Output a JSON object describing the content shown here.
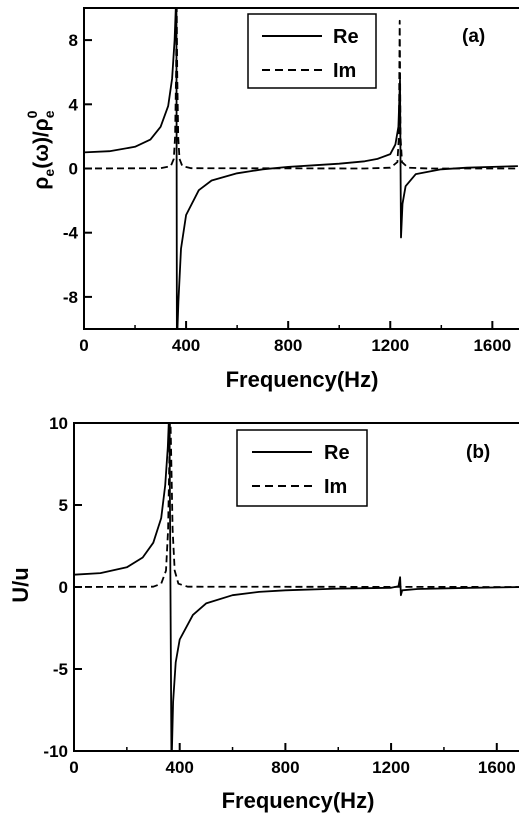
{
  "chart_data": [
    {
      "type": "line",
      "panel_label": "(a)",
      "xlabel": "Frequency(Hz)",
      "ylabel": {
        "rho": "ρ",
        "sub_e": "e",
        "omega": "(ω)",
        "slash": "/",
        "sup_0": "0"
      },
      "xlim": [
        0,
        1700
      ],
      "ylim": [
        -10,
        10
      ],
      "xticks": [
        0,
        400,
        800,
        1200,
        1600
      ],
      "yticks": [
        8,
        4,
        0,
        -4,
        -8
      ],
      "xtick_labels": [
        "0",
        "400",
        "800",
        "1200",
        "1600"
      ],
      "ytick_labels": [
        "8",
        "4",
        "0",
        "-4",
        "-8"
      ],
      "legend_position": "top-right",
      "series": [
        {
          "name": "Re",
          "style": "solid",
          "points": [
            [
              0,
              1.0
            ],
            [
              100,
              1.08
            ],
            [
              200,
              1.35
            ],
            [
              260,
              1.8
            ],
            [
              300,
              2.6
            ],
            [
              330,
              3.9
            ],
            [
              345,
              5.6
            ],
            [
              355,
              8.0
            ],
            [
              362,
              11
            ],
            [
              364,
              -11
            ],
            [
              370,
              -8.3
            ],
            [
              380,
              -5.0
            ],
            [
              400,
              -2.9
            ],
            [
              450,
              -1.35
            ],
            [
              500,
              -0.75
            ],
            [
              600,
              -0.3
            ],
            [
              700,
              -0.05
            ],
            [
              800,
              0.1
            ],
            [
              900,
              0.2
            ],
            [
              1000,
              0.3
            ],
            [
              1100,
              0.45
            ],
            [
              1150,
              0.6
            ],
            [
              1200,
              0.9
            ],
            [
              1220,
              1.5
            ],
            [
              1232,
              2.6
            ],
            [
              1238,
              5.5
            ],
            [
              1242,
              -4.3
            ],
            [
              1248,
              -2.2
            ],
            [
              1260,
              -1.1
            ],
            [
              1300,
              -0.35
            ],
            [
              1400,
              -0.05
            ],
            [
              1500,
              0.05
            ],
            [
              1600,
              0.1
            ],
            [
              1700,
              0.15
            ]
          ]
        },
        {
          "name": "Im",
          "style": "dashed",
          "points": [
            [
              0,
              0
            ],
            [
              300,
              0.02
            ],
            [
              340,
              0.15
            ],
            [
              352,
              0.6
            ],
            [
              357,
              2.0
            ],
            [
              361,
              6.0
            ],
            [
              363,
              11
            ],
            [
              365,
              6.0
            ],
            [
              369,
              2.0
            ],
            [
              374,
              0.6
            ],
            [
              385,
              0.15
            ],
            [
              420,
              0.02
            ],
            [
              1100,
              0
            ],
            [
              1200,
              0.05
            ],
            [
              1228,
              0.4
            ],
            [
              1234,
              2.0
            ],
            [
              1237,
              9.2
            ],
            [
              1240,
              2.0
            ],
            [
              1246,
              0.4
            ],
            [
              1270,
              0.05
            ],
            [
              1350,
              0
            ],
            [
              1700,
              0
            ]
          ]
        }
      ]
    },
    {
      "type": "line",
      "panel_label": "(b)",
      "xlabel": "Frequency(Hz)",
      "ylabel": "U/u",
      "xlim": [
        0,
        1700
      ],
      "ylim": [
        -10,
        10
      ],
      "xticks": [
        0,
        400,
        800,
        1200,
        1600
      ],
      "yticks": [
        10,
        5,
        0,
        -5,
        -10
      ],
      "xtick_labels": [
        "0",
        "400",
        "800",
        "1200",
        "1600"
      ],
      "ytick_labels": [
        "10",
        "5",
        "0",
        "-5",
        "-10"
      ],
      "legend_position": "top-right",
      "series": [
        {
          "name": "Re",
          "style": "solid",
          "points": [
            [
              0,
              0.75
            ],
            [
              100,
              0.85
            ],
            [
              200,
              1.2
            ],
            [
              260,
              1.8
            ],
            [
              300,
              2.7
            ],
            [
              330,
              4.2
            ],
            [
              345,
              6.2
            ],
            [
              355,
              8.5
            ],
            [
              361,
              11
            ],
            [
              369,
              -11
            ],
            [
              375,
              -7.0
            ],
            [
              385,
              -4.6
            ],
            [
              400,
              -3.2
            ],
            [
              450,
              -1.7
            ],
            [
              500,
              -1.0
            ],
            [
              600,
              -0.5
            ],
            [
              700,
              -0.3
            ],
            [
              800,
              -0.2
            ],
            [
              1000,
              -0.1
            ],
            [
              1200,
              -0.05
            ],
            [
              1228,
              0.05
            ],
            [
              1234,
              0.6
            ],
            [
              1237,
              -0.5
            ],
            [
              1242,
              -0.2
            ],
            [
              1300,
              -0.12
            ],
            [
              1500,
              -0.05
            ],
            [
              1700,
              0
            ]
          ]
        },
        {
          "name": "Im",
          "style": "dashed",
          "points": [
            [
              0,
              0
            ],
            [
              300,
              0.02
            ],
            [
              330,
              0.2
            ],
            [
              348,
              1.0
            ],
            [
              356,
              3.5
            ],
            [
              361,
              8.0
            ],
            [
              364,
              11
            ],
            [
              368,
              8.0
            ],
            [
              373,
              3.5
            ],
            [
              381,
              1.0
            ],
            [
              395,
              0.2
            ],
            [
              430,
              0.02
            ],
            [
              1700,
              0
            ]
          ]
        }
      ]
    }
  ]
}
